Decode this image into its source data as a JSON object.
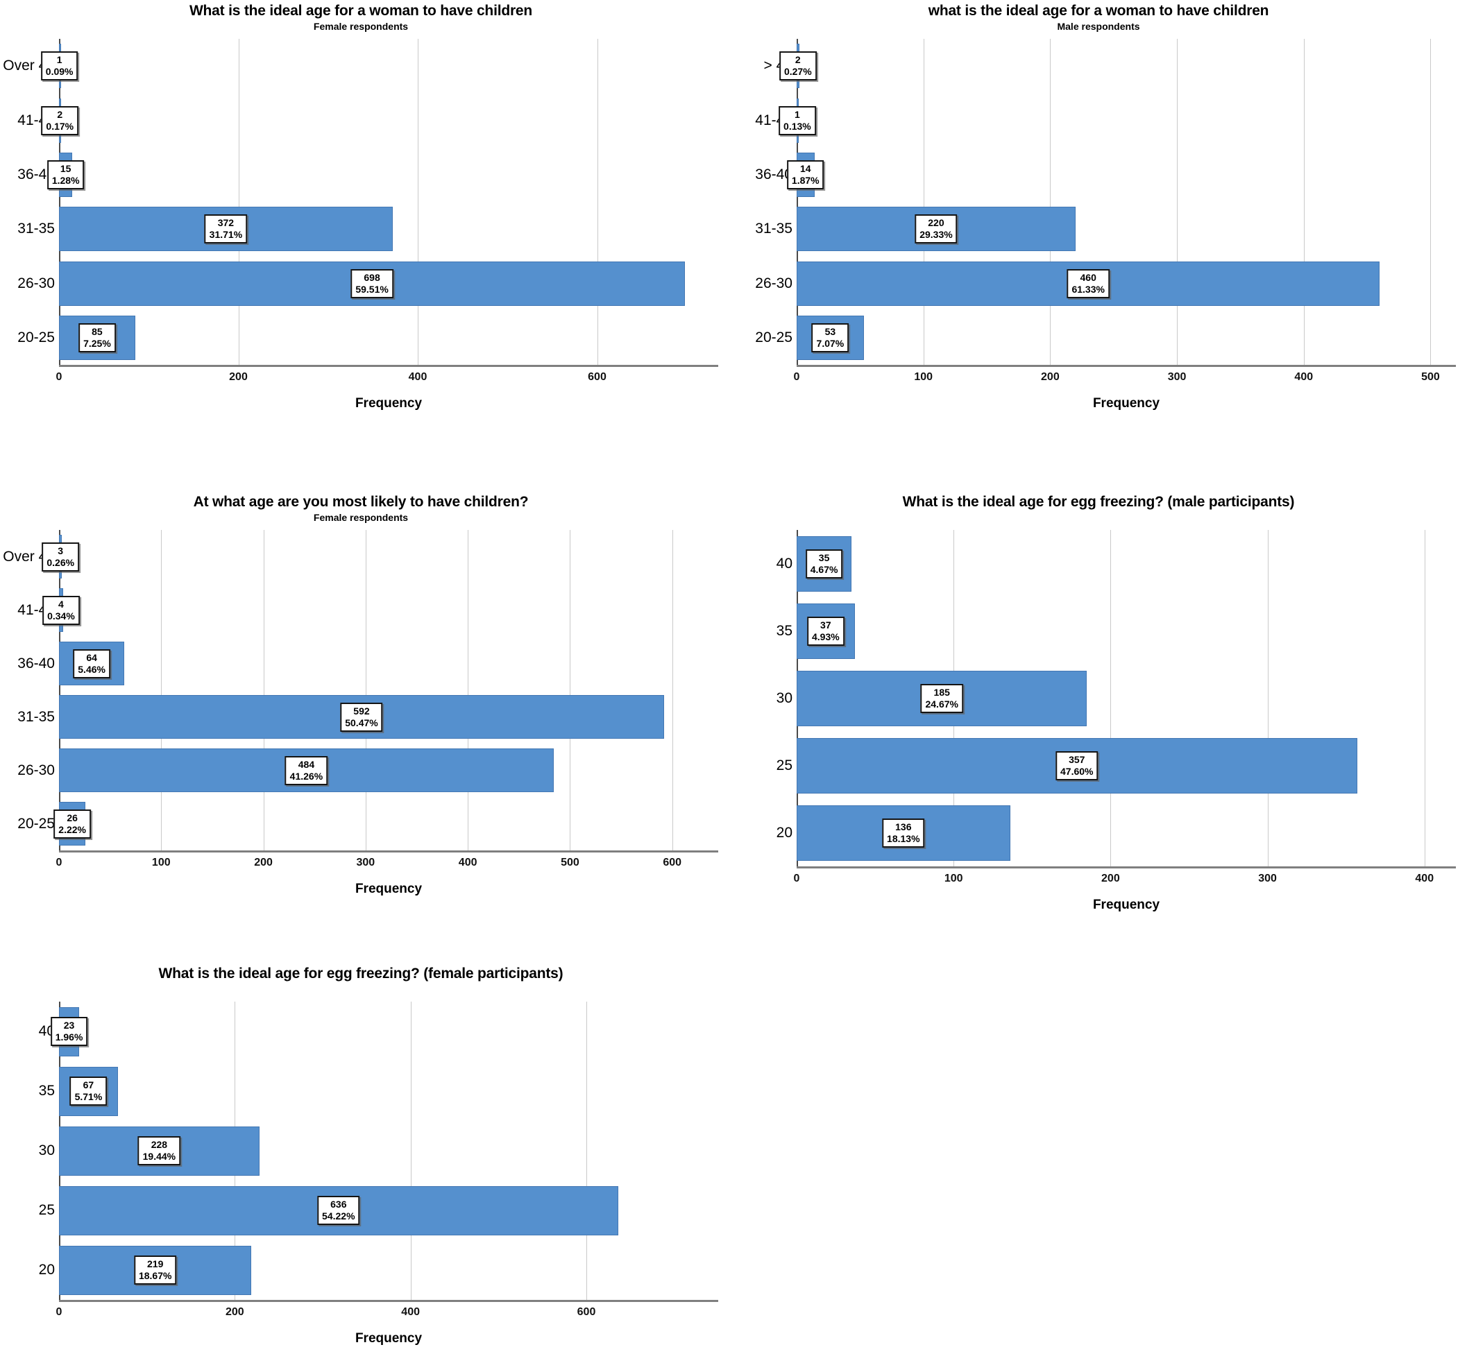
{
  "style": {
    "bar_color": "#5590ce",
    "grid_color": "#c9c9c9",
    "axis_color": "#7f7f7f",
    "value_box_border": "#141414",
    "background": "#ffffff"
  },
  "chart_data": [
    {
      "type": "bar",
      "orientation": "horizontal",
      "title": "What is the ideal age for a woman to have children",
      "subtitle": "Female respondents",
      "xlabel": "Frequency",
      "categories_top_to_bottom": [
        "Over 45",
        "41-45",
        "36-40",
        "31-35",
        "26-30",
        "20-25"
      ],
      "values": [
        1,
        2,
        15,
        372,
        698,
        85
      ],
      "percent_labels": [
        "0.09%",
        "0.17%",
        "1.28%",
        "31.71%",
        "59.51%",
        "7.25%"
      ],
      "xticks": [
        0,
        200,
        400,
        600
      ],
      "xlim": [
        0,
        735
      ],
      "grid": "vertical",
      "legend": "none"
    },
    {
      "type": "bar",
      "orientation": "horizontal",
      "title": "what is the ideal age for a woman to have children",
      "subtitle": "Male respondents",
      "xlabel": "Frequency",
      "categories_top_to_bottom": [
        "> 45",
        "41-45",
        "36-40",
        "31-35",
        "26-30",
        "20-25"
      ],
      "values": [
        2,
        1,
        14,
        220,
        460,
        53
      ],
      "percent_labels": [
        "0.27%",
        "0.13%",
        "1.87%",
        "29.33%",
        "61.33%",
        "7.07%"
      ],
      "xticks": [
        0,
        100,
        200,
        300,
        400,
        500
      ],
      "xlim": [
        0,
        520
      ],
      "grid": "vertical",
      "legend": "none"
    },
    {
      "type": "bar",
      "orientation": "horizontal",
      "title": "At what age are you most likely to have children?",
      "subtitle": "Female respondents",
      "xlabel": "Frequency",
      "categories_top_to_bottom": [
        "Over 45",
        "41-45",
        "36-40",
        "31-35",
        "26-30",
        "20-25"
      ],
      "values": [
        3,
        4,
        64,
        592,
        484,
        26
      ],
      "percent_labels": [
        "0.26%",
        "0.34%",
        "5.46%",
        "50.47%",
        "41.26%",
        "2.22%"
      ],
      "xticks": [
        0,
        100,
        200,
        300,
        400,
        500,
        600
      ],
      "xlim": [
        0,
        645
      ],
      "grid": "vertical",
      "legend": "none"
    },
    {
      "type": "bar",
      "orientation": "horizontal",
      "title": "What is the ideal age for egg freezing? (male participants)",
      "subtitle": "",
      "xlabel": "Frequency",
      "categories_top_to_bottom": [
        "40",
        "35",
        "30",
        "25",
        "20"
      ],
      "values": [
        35,
        37,
        185,
        357,
        136
      ],
      "percent_labels": [
        "4.67%",
        "4.93%",
        "24.67%",
        "47.60%",
        "18.13%"
      ],
      "xticks": [
        0,
        100,
        200,
        300,
        400
      ],
      "xlim": [
        0,
        420
      ],
      "grid": "vertical",
      "legend": "none"
    },
    {
      "type": "bar",
      "orientation": "horizontal",
      "title": "What is the ideal age for egg freezing? (female participants)",
      "subtitle": "",
      "xlabel": "Frequency",
      "categories_top_to_bottom": [
        "40",
        "35",
        "30",
        "25",
        "20"
      ],
      "values": [
        23,
        67,
        228,
        636,
        219
      ],
      "percent_labels": [
        "1.96%",
        "5.71%",
        "19.44%",
        "54.22%",
        "18.67%"
      ],
      "xticks": [
        0,
        200,
        400,
        600
      ],
      "xlim": [
        0,
        750
      ],
      "grid": "vertical",
      "legend": "none"
    }
  ]
}
